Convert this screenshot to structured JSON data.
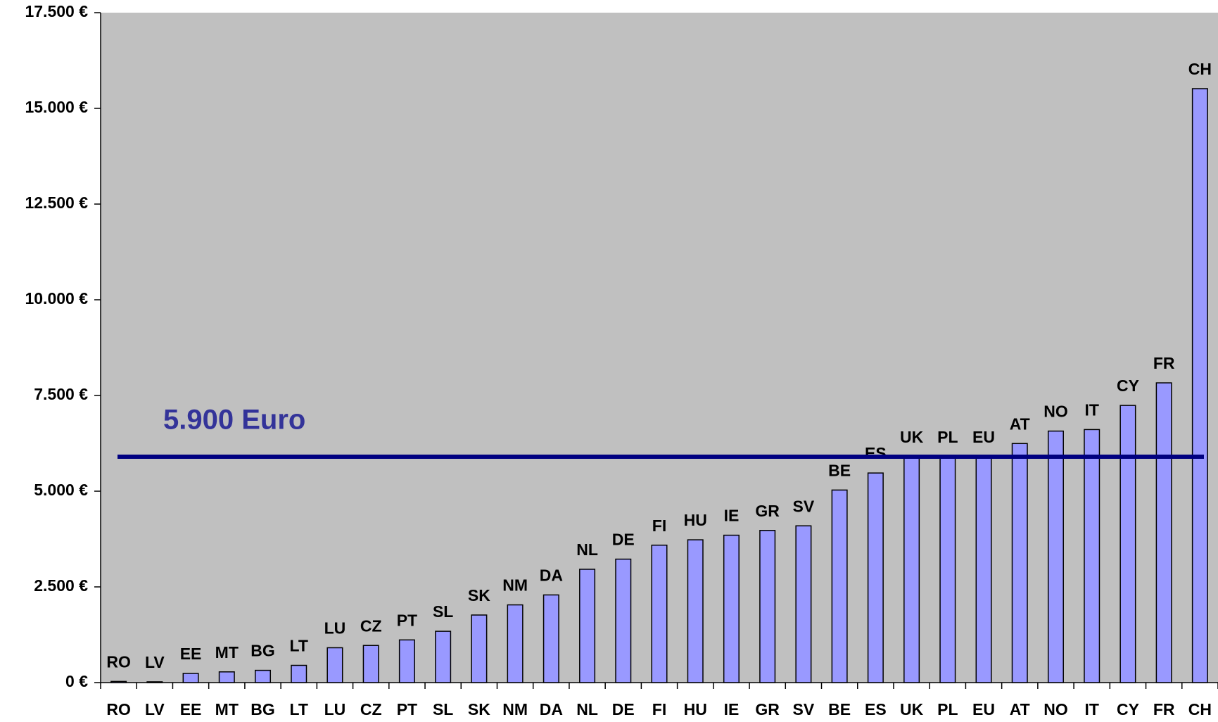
{
  "chart_data": {
    "type": "bar",
    "categories": [
      "RO",
      "LV",
      "EE",
      "MT",
      "BG",
      "LT",
      "LU",
      "CZ",
      "PT",
      "SL",
      "SK",
      "NM",
      "DA",
      "NL",
      "DE",
      "FI",
      "HU",
      "IE",
      "GR",
      "SV",
      "BE",
      "ES",
      "UK",
      "PL",
      "EU",
      "AT",
      "NO",
      "IT",
      "CY",
      "FR",
      "CH"
    ],
    "values": [
      30,
      20,
      240,
      280,
      320,
      450,
      910,
      970,
      1115,
      1340,
      1765,
      2030,
      2290,
      2960,
      3225,
      3590,
      3730,
      3850,
      3975,
      4095,
      5030,
      5475,
      5900,
      5900,
      5900,
      6245,
      6570,
      6610,
      7240,
      7830,
      15515
    ],
    "color": "#9999ff",
    "ylim": [
      0,
      17500
    ],
    "yticks": [
      {
        "value": 0,
        "label": "0 €"
      },
      {
        "value": 2500,
        "label": "2.500 €"
      },
      {
        "value": 5000,
        "label": "5.000 €"
      },
      {
        "value": 7500,
        "label": "7.500 €"
      },
      {
        "value": 10000,
        "label": "10.000 €"
      },
      {
        "value": 12500,
        "label": "12.500 €"
      },
      {
        "value": 15000,
        "label": "15.000 €"
      },
      {
        "value": 17500,
        "label": "17.500 €"
      }
    ],
    "reference_line": {
      "value": 5900,
      "label": "5.900 Euro",
      "color": "#000080",
      "label_color": "#333399"
    },
    "background": "#c0c0c0"
  }
}
